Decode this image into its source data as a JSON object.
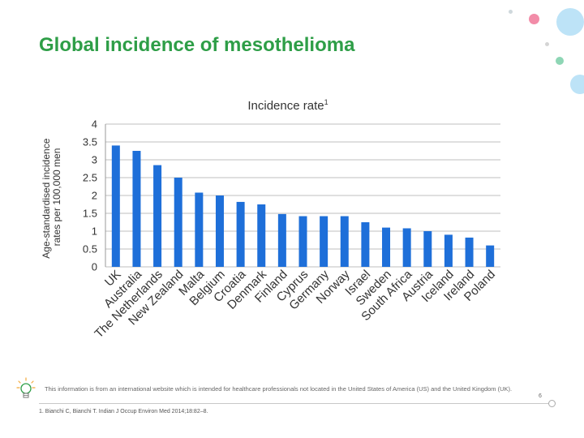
{
  "slide": {
    "title": "Global incidence of mesothelioma",
    "disclaimer": "This information is from an international website which is intended for healthcare professionals not located in the United States of America (US) and the United Kingdom (UK).",
    "reference": "1. Bianchi C, Bianchi T. Indian J Occup Environ Med 2014;18:82–8.",
    "page_number": "6",
    "colors": {
      "title": "#2E9E47",
      "bar": "#1E6FD9",
      "grid": "#bfbfbf",
      "deco_blue": "#BDE3F7",
      "deco_pink": "#F28CA8",
      "deco_green": "#8ED6B5",
      "deco_gray": "#C8C8C8"
    },
    "icons": [
      "lightbulb-icon"
    ]
  },
  "chart_data": {
    "type": "bar",
    "title": "Incidence rate",
    "title_superscript": "1",
    "xlabel": "",
    "ylabel": "Age-standardised incidence rates per 100,000 men",
    "ylim": [
      0,
      4
    ],
    "yticks": [
      "0",
      "0.5",
      "1",
      "1.5",
      "2",
      "2.5",
      "3",
      "3.5",
      "4"
    ],
    "grid": true,
    "categories": [
      "UK",
      "Australia",
      "The Netherlands",
      "New Zealand",
      "Malta",
      "Belgium",
      "Croatia",
      "Denmark",
      "Finland",
      "Cyprus",
      "Germany",
      "Norway",
      "Israel",
      "Sweden",
      "South Africa",
      "Austria",
      "Iceland",
      "Ireland",
      "Poland"
    ],
    "values": [
      3.4,
      3.25,
      2.85,
      2.5,
      2.08,
      2.0,
      1.82,
      1.75,
      1.48,
      1.42,
      1.42,
      1.42,
      1.25,
      1.1,
      1.08,
      1.0,
      0.9,
      0.82,
      0.6
    ]
  }
}
